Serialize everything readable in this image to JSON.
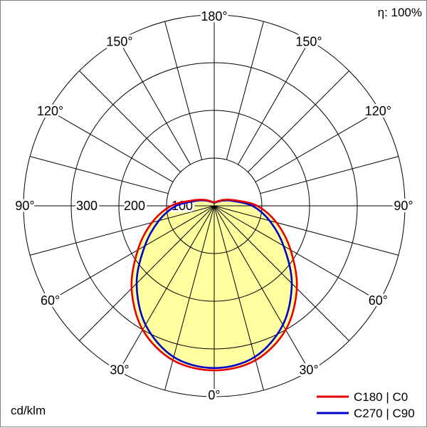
{
  "header": {
    "efficiency": "η: 100%"
  },
  "footer": {
    "unit": "cd/klm"
  },
  "legend": {
    "items": [
      {
        "label": "C180 | C0",
        "color": "#e60000"
      },
      {
        "label": "C270 | C90",
        "color": "#0000cc"
      }
    ]
  },
  "chart_data": {
    "type": "polar-line",
    "description": "Luminous intensity distribution curve of a luminaire",
    "unit": "cd/klm",
    "efficiency": "η: 100%",
    "max_value": 400,
    "rings": [
      100,
      200,
      300,
      400
    ],
    "ring_labels": [
      {
        "value": 100,
        "label": "100"
      },
      {
        "value": 200,
        "label": "200"
      },
      {
        "value": 300,
        "label": "300"
      }
    ],
    "angle_labels": [
      {
        "angle": 0,
        "label": "0°"
      },
      {
        "angle": 30,
        "label": "30°"
      },
      {
        "angle": 60,
        "label": "60°"
      },
      {
        "angle": 90,
        "label": "90°"
      },
      {
        "angle": 120,
        "label": "120°"
      },
      {
        "angle": 150,
        "label": "150°"
      },
      {
        "angle": 180,
        "label": "180°"
      }
    ],
    "spoke_step_deg": 15,
    "gamma_angles": [
      0,
      15,
      30,
      45,
      60,
      75,
      90,
      105,
      120,
      135,
      150,
      165,
      180
    ],
    "series": [
      {
        "name": "C180 | C0",
        "color": "#e60000",
        "values": [
          345,
          335,
          300,
          245,
          185,
          135,
          90,
          45,
          25,
          15,
          10,
          8,
          8
        ]
      },
      {
        "name": "C270 | C90",
        "color": "#0000cc",
        "values": [
          340,
          328,
          288,
          230,
          168,
          120,
          80,
          40,
          22,
          13,
          9,
          7,
          7
        ]
      }
    ],
    "fill_color": "#ffffa0",
    "grid_color": "#000000",
    "grid": true,
    "legend_position": "bottom-right"
  }
}
